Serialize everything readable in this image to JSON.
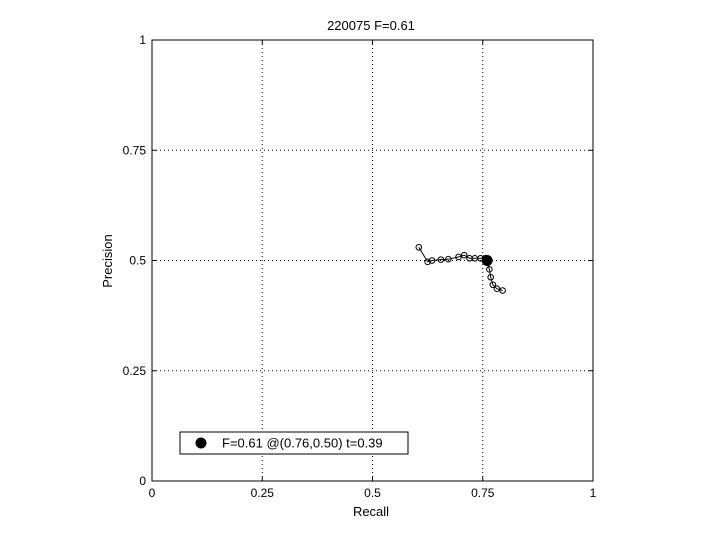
{
  "chart_data": {
    "type": "line",
    "title": "220075 F=0.61",
    "xlabel": "Recall",
    "ylabel": "Precision",
    "xlim": [
      0,
      1
    ],
    "ylim": [
      0,
      1
    ],
    "xticks": [
      0,
      0.25,
      0.5,
      0.75,
      1
    ],
    "xtick_labels": [
      "0",
      "0.25",
      "0.5",
      "0.75",
      "1"
    ],
    "yticks": [
      0,
      0.25,
      0.5,
      0.75,
      1
    ],
    "ytick_labels": [
      "0",
      "0.25",
      "0.5",
      "0.75",
      "1"
    ],
    "grid": true,
    "legend_position": "bottom-left",
    "series": [
      {
        "marker": "open-circle",
        "color": "#000000",
        "points": [
          [
            0.605,
            0.53
          ],
          [
            0.625,
            0.497
          ],
          [
            0.635,
            0.5
          ],
          [
            0.655,
            0.502
          ],
          [
            0.672,
            0.503
          ],
          [
            0.695,
            0.508
          ],
          [
            0.708,
            0.512
          ],
          [
            0.72,
            0.505
          ],
          [
            0.732,
            0.505
          ],
          [
            0.745,
            0.505
          ],
          [
            0.755,
            0.505
          ],
          [
            0.76,
            0.496
          ],
          [
            0.765,
            0.48
          ],
          [
            0.768,
            0.462
          ],
          [
            0.773,
            0.445
          ],
          [
            0.782,
            0.436
          ],
          [
            0.795,
            0.432
          ]
        ]
      }
    ],
    "best_point": {
      "x": 0.76,
      "y": 0.5,
      "marker": "filled-circle",
      "color": "#000000"
    },
    "legend_label": "F=0.61 @(0.76,0.50) t=0.39"
  }
}
